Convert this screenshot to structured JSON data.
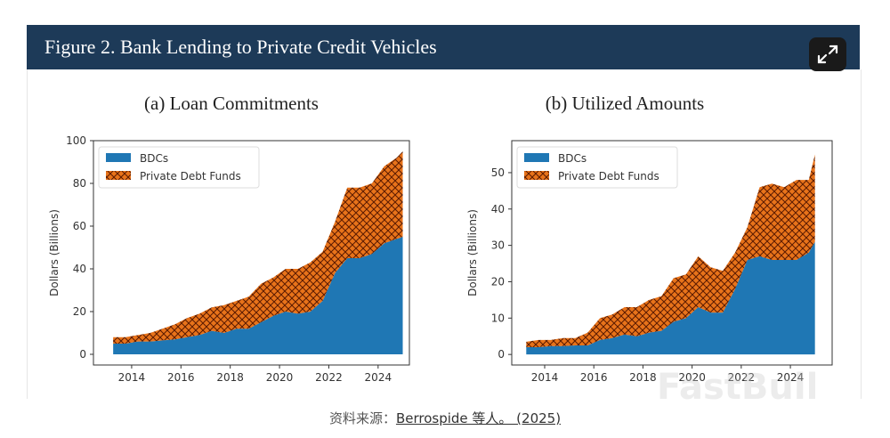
{
  "header": {
    "title": "Figure 2. Bank Lending to Private Credit Vehicles",
    "expand_icon": "expand-arrows-icon"
  },
  "colors": {
    "header_bg": "#1d3a58",
    "bdc": "#1f77b4",
    "pdf": "#e8731a",
    "hatch": "#5a1a00"
  },
  "watermark": "FastBull",
  "footer": {
    "prefix": "资料来源：",
    "link": "Berrospide 等人。 (2025)"
  },
  "chart_data": [
    {
      "type": "area",
      "stacked": true,
      "title": "(a) Loan Commitments",
      "ylabel": "Dollars (Billions)",
      "xlabel": "",
      "xlim": [
        2012.45,
        2025.27
      ],
      "ylim": [
        -5,
        100
      ],
      "xticks": [
        2014,
        2016,
        2018,
        2020,
        2022,
        2024
      ],
      "yticks": [
        0,
        20,
        40,
        60,
        80,
        100
      ],
      "legend": "top-left",
      "grid": false,
      "x": [
        2013.25,
        2013.75,
        2014.25,
        2014.75,
        2015.25,
        2015.75,
        2016.25,
        2016.75,
        2017.25,
        2017.75,
        2018.25,
        2018.75,
        2019.25,
        2019.75,
        2020.25,
        2020.75,
        2021.25,
        2021.75,
        2022.25,
        2022.75,
        2023.25,
        2023.75,
        2024.25,
        2024.75,
        2025.0
      ],
      "series": [
        {
          "name": "BDCs",
          "values": [
            5,
            5,
            6,
            6,
            6.5,
            7,
            8,
            9,
            11,
            10,
            12,
            12,
            15,
            18,
            20,
            19,
            20,
            25,
            38,
            45,
            45,
            47,
            52,
            54,
            55
          ]
        },
        {
          "name": "Private Debt Funds",
          "values": [
            3,
            3,
            3,
            4,
            5.5,
            7,
            9,
            10,
            11,
            13,
            13,
            15,
            18,
            18,
            20,
            21,
            23,
            23,
            24,
            33,
            33,
            33,
            36,
            38,
            40
          ]
        }
      ]
    },
    {
      "type": "area",
      "stacked": true,
      "title": "(b) Utilized Amounts",
      "ylabel": "Dollars (Billions)",
      "xlabel": "",
      "xlim": [
        2012.66,
        2025.7
      ],
      "ylim": [
        -2.9,
        58.8
      ],
      "xticks": [
        2014,
        2016,
        2018,
        2020,
        2022,
        2024
      ],
      "yticks": [
        0,
        10,
        20,
        30,
        40,
        50
      ],
      "legend": "top-left",
      "grid": false,
      "x": [
        2013.25,
        2013.75,
        2014.25,
        2014.75,
        2015.25,
        2015.75,
        2016.25,
        2016.75,
        2017.25,
        2017.75,
        2018.25,
        2018.75,
        2019.25,
        2019.75,
        2020.25,
        2020.75,
        2021.25,
        2021.75,
        2022.25,
        2022.75,
        2023.25,
        2023.75,
        2024.25,
        2024.75,
        2025.0
      ],
      "series": [
        {
          "name": "BDCs",
          "values": [
            2,
            2,
            2.3,
            2.3,
            2.5,
            2.5,
            4,
            4.5,
            5.5,
            5,
            6,
            6.5,
            9,
            10,
            13,
            11.5,
            11.5,
            18,
            26,
            27,
            26,
            26,
            26,
            28,
            31
          ]
        },
        {
          "name": "Private Debt Funds",
          "values": [
            1.5,
            2,
            1.7,
            2.2,
            2,
            3.5,
            6,
            6.5,
            7.5,
            8,
            9,
            9.5,
            12,
            12,
            14,
            12.5,
            11.5,
            10,
            9,
            19,
            21,
            20,
            22,
            20,
            24
          ]
        }
      ]
    }
  ]
}
